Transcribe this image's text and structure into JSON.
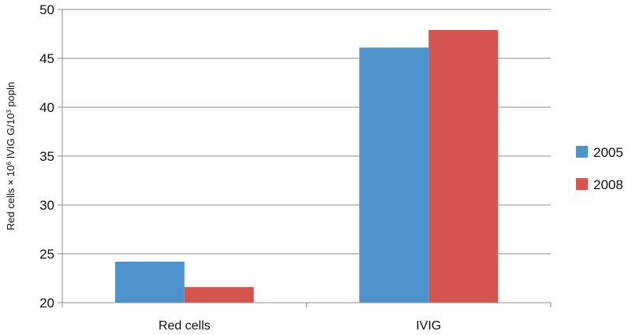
{
  "chart_data": {
    "type": "bar",
    "categories": [
      "Red cells",
      "IVIG"
    ],
    "series": [
      {
        "name": "2005",
        "values": [
          24.2,
          46.1
        ],
        "color": "#4f93cc"
      },
      {
        "name": "2008",
        "values": [
          21.6,
          47.9
        ],
        "color": "#d65450"
      }
    ],
    "ylim": [
      20,
      50
    ],
    "yticks": [
      20,
      25,
      30,
      35,
      40,
      45,
      50
    ],
    "ylabel_parts": {
      "a": "Red cells × 10",
      "a_sup": "6",
      "b": " IVIG G/10",
      "b_sup": "3",
      "c": " popln"
    },
    "xlabel": "",
    "grid": true,
    "legend_position": "right"
  }
}
